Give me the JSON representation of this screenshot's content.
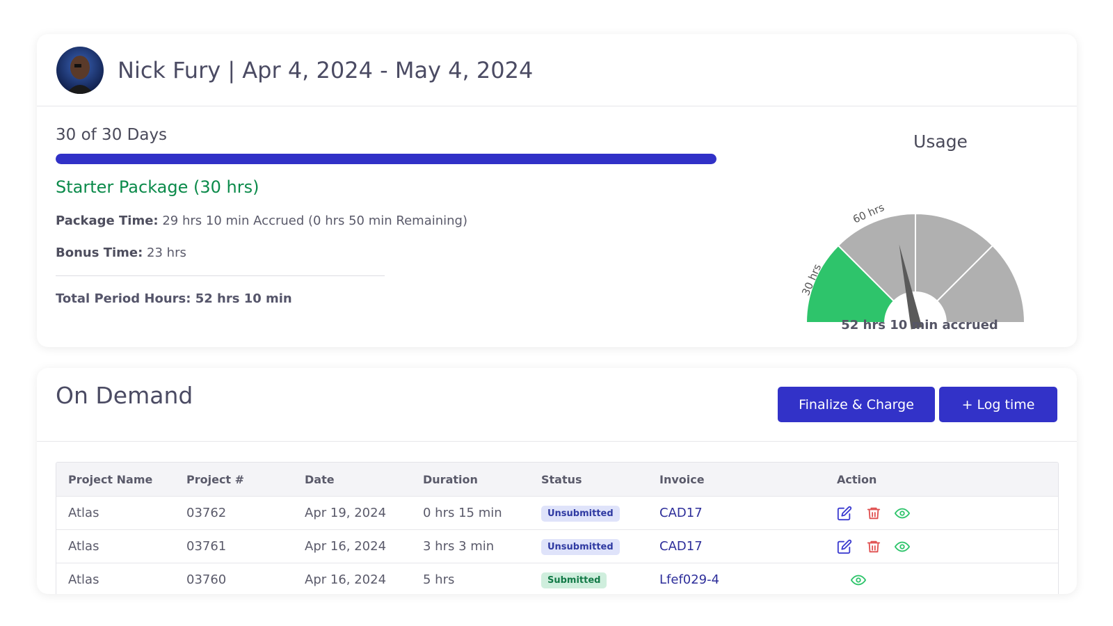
{
  "header": {
    "user_name": "Nick Fury",
    "separator": "|",
    "period": "Apr 4, 2024 - May 4, 2024",
    "title": "Nick Fury | Apr 4, 2024 - May 4, 2024",
    "avatar_icon": "user-avatar-icon"
  },
  "period_summary": {
    "days_label": "30 of 30 Days",
    "days_elapsed": 30,
    "days_total": 30,
    "progress_color": "#3131c7",
    "package_title": "Starter Package (30 hrs)",
    "package_time_label": "Package Time:",
    "package_time_value": "29 hrs 10 min Accrued (0 hrs 50 min Remaining)",
    "bonus_time_label": "Bonus Time:",
    "bonus_time_value": "23 hrs",
    "total_label": "Total Period Hours: 52 hrs 10 min"
  },
  "usage": {
    "title": "Usage",
    "tick_30": "30 hrs",
    "tick_60": "60 hrs",
    "caption": "52 hrs 10 min accrued",
    "accrued_hours": 52.17,
    "max_hours": 120,
    "filled_segment_color": "#2ec46b",
    "empty_segment_color": "#b0b0b0",
    "needle_color": "#5a5a5a"
  },
  "on_demand": {
    "title": "On Demand",
    "finalize_button": "Finalize & Charge",
    "log_time_button": "+ Log time",
    "columns": [
      "Project Name",
      "Project #",
      "Date",
      "Duration",
      "Status",
      "Invoice",
      "Action"
    ],
    "rows": [
      {
        "name": "Atlas",
        "number": "03762",
        "date": "Apr 19, 2024",
        "duration": "0 hrs 15 min",
        "status": "Unsubmitted",
        "invoice": "CAD17",
        "actions": [
          "edit-icon",
          "trash-icon",
          "eye-icon"
        ]
      },
      {
        "name": "Atlas",
        "number": "03761",
        "date": "Apr 16, 2024",
        "duration": "3 hrs 3 min",
        "status": "Unsubmitted",
        "invoice": "CAD17",
        "actions": [
          "edit-icon",
          "trash-icon",
          "eye-icon"
        ]
      },
      {
        "name": "Atlas",
        "number": "03760",
        "date": "Apr 16, 2024",
        "duration": "5 hrs",
        "status": "Submitted",
        "invoice": "Lfef029-4",
        "actions": [
          "eye-icon"
        ]
      }
    ],
    "colors": {
      "button": "#3232c8",
      "badge_unsubmitted_bg": "#dfe3fa",
      "badge_unsubmitted_text": "#2f3aa2",
      "badge_submitted_bg": "#cfeedd",
      "badge_submitted_text": "#137a47",
      "edit_icon": "#3b3bd0",
      "trash_icon": "#e05050",
      "eye_icon": "#2ec46b"
    }
  }
}
